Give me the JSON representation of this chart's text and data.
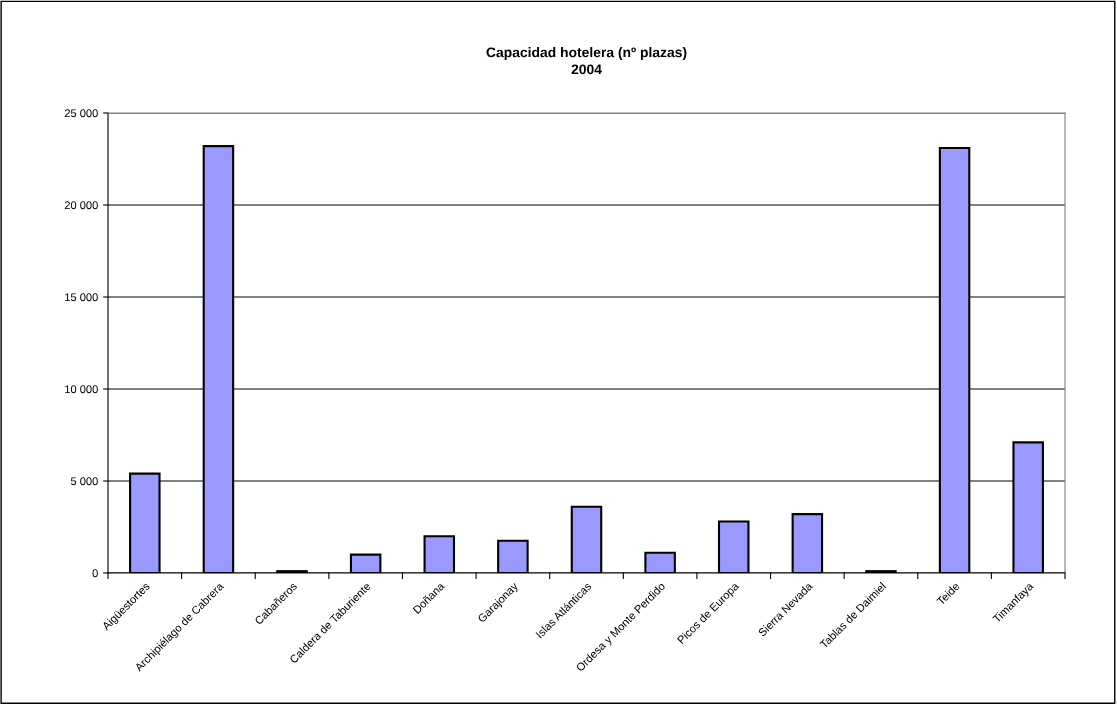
{
  "chart_data": {
    "type": "bar",
    "title": "Capacidad hotelera (nº plazas)\n2004",
    "categories": [
      "Aigüestortes",
      "Archipiélago de Cabrera",
      "Cabañeros",
      "Caldera de Taburiente",
      "Doñana",
      "Garajonay",
      "Islas Atlánticas",
      "Ordesa y Monte Perdido",
      "Picos de Europa",
      "Sierra Nevada",
      "Tablas de Daimiel",
      "Teide",
      "Timanfaya"
    ],
    "values": [
      5400,
      23200,
      100,
      1000,
      2000,
      1750,
      3600,
      1100,
      2800,
      3200,
      100,
      23100,
      7100
    ],
    "color": "#9999ff",
    "ylim": [
      0,
      25000
    ],
    "yticks": [
      {
        "value": 0,
        "label": "0"
      },
      {
        "value": 5000,
        "label": "5 000"
      },
      {
        "value": 10000,
        "label": "10 000"
      },
      {
        "value": 15000,
        "label": "15 000"
      },
      {
        "value": 20000,
        "label": "20 000"
      },
      {
        "value": 25000,
        "label": "25 000"
      }
    ],
    "grid": "y",
    "legend": false
  }
}
